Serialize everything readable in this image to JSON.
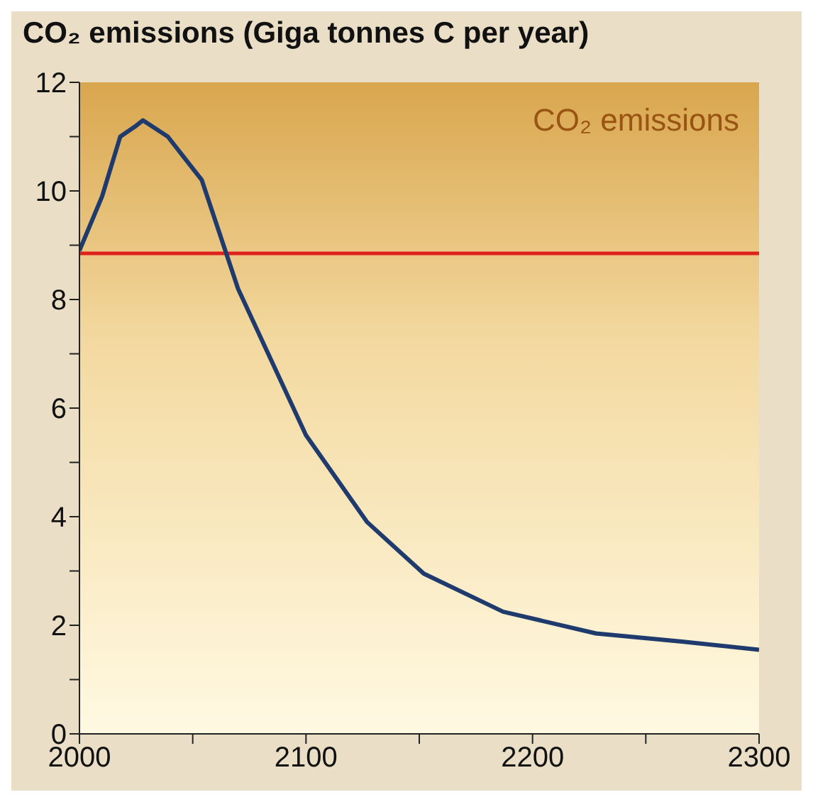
{
  "chart_data": {
    "type": "line",
    "title": "CO₂ emissions (Giga tonnes C per year)",
    "annotations": [
      "CO₂ emissions"
    ],
    "x": [
      2000,
      2010,
      2018,
      2025,
      2028,
      2039,
      2054,
      2070,
      2100,
      2127,
      2152,
      2187,
      2228,
      2266,
      2300
    ],
    "series": [
      {
        "color": "#1f3b6e",
        "values": [
          8.9,
          9.9,
          11.0,
          11.2,
          11.3,
          11.0,
          10.2,
          8.2,
          5.5,
          3.9,
          2.95,
          2.25,
          1.85,
          1.7,
          1.55
        ]
      }
    ],
    "xlim": [
      2000,
      2300
    ],
    "xticks": [
      2000,
      {
        "value": 2050,
        "label": null
      },
      2100,
      {
        "value": 2150,
        "label": null
      },
      2200,
      {
        "value": 2250,
        "label": null
      },
      2300
    ],
    "ylim": [
      0,
      12
    ],
    "yticks": [
      0,
      {
        "value": 1,
        "label": null
      },
      2,
      {
        "value": 3,
        "label": null
      },
      4,
      {
        "value": 5,
        "label": null
      },
      6,
      {
        "value": 7,
        "label": null
      },
      8,
      {
        "value": 9,
        "label": null
      },
      10,
      {
        "value": 11,
        "label": null
      },
      12
    ],
    "ref_lines": [
      {
        "axis": "y",
        "value": 8.85,
        "label": null,
        "color": "#e0201c"
      }
    ],
    "marker": "none"
  }
}
